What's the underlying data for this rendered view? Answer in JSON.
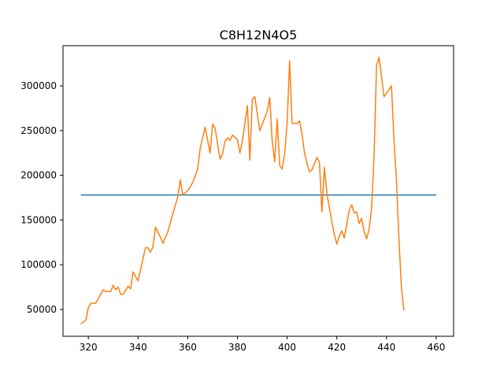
{
  "chart_data": {
    "type": "line",
    "title": "C8H12N4O5",
    "xlabel": "",
    "ylabel": "",
    "xlim": [
      309.8,
      467.0
    ],
    "ylim": [
      20000,
      345000
    ],
    "xticks": [
      320,
      340,
      360,
      380,
      400,
      420,
      440,
      460
    ],
    "yticks": [
      50000,
      100000,
      150000,
      200000,
      250000,
      300000
    ],
    "grid": false,
    "series": [
      {
        "color": "#1f77b4",
        "points": [
          [
            317,
            178000
          ],
          [
            460,
            178000
          ]
        ]
      },
      {
        "color": "#ff7f0e",
        "points": [
          [
            317,
            34000
          ],
          [
            319,
            38000
          ],
          [
            320,
            52000
          ],
          [
            321,
            57000
          ],
          [
            323,
            57000
          ],
          [
            324,
            62000
          ],
          [
            326,
            72000
          ],
          [
            327,
            70000
          ],
          [
            329,
            70000
          ],
          [
            330,
            77000
          ],
          [
            331,
            72000
          ],
          [
            332,
            75000
          ],
          [
            333,
            67000
          ],
          [
            334,
            67000
          ],
          [
            336,
            76000
          ],
          [
            337,
            73000
          ],
          [
            338,
            92000
          ],
          [
            340,
            82000
          ],
          [
            343,
            119000
          ],
          [
            344,
            119000
          ],
          [
            345,
            114000
          ],
          [
            346,
            120000
          ],
          [
            347,
            142000
          ],
          [
            349,
            131000
          ],
          [
            350,
            124000
          ],
          [
            352,
            137000
          ],
          [
            354,
            157000
          ],
          [
            356,
            176000
          ],
          [
            357,
            195000
          ],
          [
            358,
            178000
          ],
          [
            360,
            183000
          ],
          [
            361,
            187000
          ],
          [
            362,
            192000
          ],
          [
            364,
            207000
          ],
          [
            365,
            230000
          ],
          [
            367,
            254000
          ],
          [
            369,
            225000
          ],
          [
            370,
            257000
          ],
          [
            371,
            253000
          ],
          [
            373,
            218000
          ],
          [
            374,
            224000
          ],
          [
            375,
            238000
          ],
          [
            376,
            242000
          ],
          [
            377,
            239000
          ],
          [
            378,
            245000
          ],
          [
            380,
            240000
          ],
          [
            381,
            225000
          ],
          [
            382,
            238000
          ],
          [
            384,
            278000
          ],
          [
            385,
            217000
          ],
          [
            386,
            285000
          ],
          [
            387,
            288000
          ],
          [
            389,
            250000
          ],
          [
            390,
            257000
          ],
          [
            392,
            272000
          ],
          [
            393,
            287000
          ],
          [
            394,
            238000
          ],
          [
            395,
            215000
          ],
          [
            396,
            263000
          ],
          [
            397,
            211000
          ],
          [
            398,
            207000
          ],
          [
            399,
            224000
          ],
          [
            400,
            258000
          ],
          [
            401,
            328000
          ],
          [
            402,
            258000
          ],
          [
            404,
            258000
          ],
          [
            405,
            261000
          ],
          [
            406,
            246000
          ],
          [
            407,
            225000
          ],
          [
            408,
            213000
          ],
          [
            409,
            204000
          ],
          [
            410,
            206000
          ],
          [
            412,
            220000
          ],
          [
            413,
            215000
          ],
          [
            414,
            159000
          ],
          [
            415,
            209000
          ],
          [
            416,
            180000
          ],
          [
            418,
            148000
          ],
          [
            419,
            134000
          ],
          [
            420,
            123000
          ],
          [
            421,
            132000
          ],
          [
            422,
            138000
          ],
          [
            423,
            130000
          ],
          [
            424,
            145000
          ],
          [
            425,
            161000
          ],
          [
            426,
            167000
          ],
          [
            427,
            158000
          ],
          [
            428,
            159000
          ],
          [
            429,
            146000
          ],
          [
            430,
            152000
          ],
          [
            431,
            137000
          ],
          [
            432,
            129000
          ],
          [
            433,
            140000
          ],
          [
            434,
            163000
          ],
          [
            435,
            222000
          ],
          [
            436,
            323000
          ],
          [
            437,
            332000
          ],
          [
            438,
            310000
          ],
          [
            439,
            288000
          ],
          [
            441,
            296000
          ],
          [
            442,
            300000
          ],
          [
            443,
            240000
          ],
          [
            444,
            195000
          ],
          [
            445,
            128000
          ],
          [
            446,
            75000
          ],
          [
            447,
            49000
          ]
        ]
      }
    ]
  }
}
